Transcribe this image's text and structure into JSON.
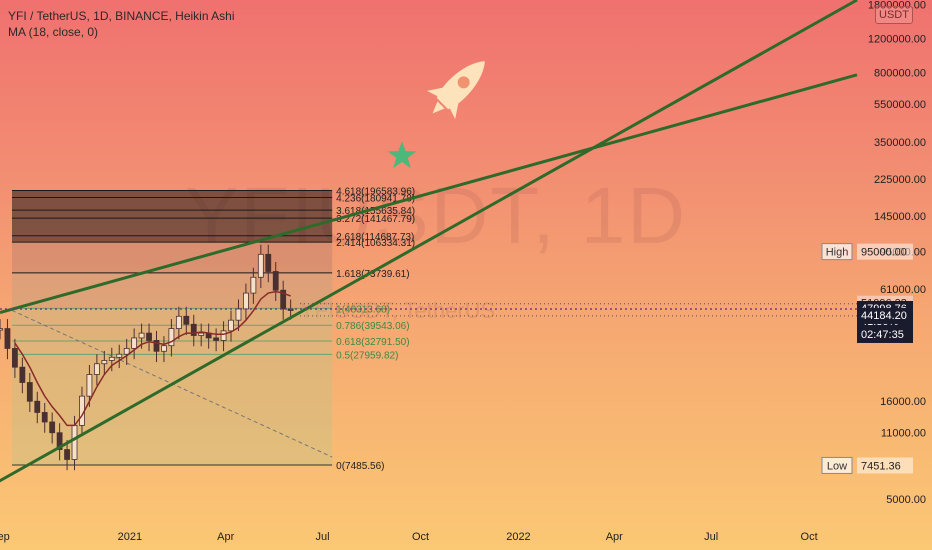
{
  "header": {
    "symbol_line": "YFI / TetherUS, 1D, BINANCE, Heikin Ashi",
    "indicator_line": "MA (18, close, 0)",
    "watermark": "YFIUSDT, 1D",
    "watermark_sub": "YFIUSDT, TetherUS",
    "currency": "USDT"
  },
  "icons": {
    "rocket": "rocket-icon",
    "star": "star-icon"
  },
  "colors": {
    "trendline": "#2e6b2a",
    "star": "#4cb87a",
    "rocket": "#fde3bc",
    "fib_dark": "#1f1a1a",
    "ma_line": "#8a2a2a",
    "candle": "#4a3030",
    "price_tag_bg": "#1b1b2e",
    "dotted_price": "#7a3a8a"
  },
  "chart_data": {
    "type": "candlestick",
    "y_scale": "log",
    "title": "YFI / TetherUS, 1D, BINANCE, Heikin Ashi",
    "x_ticks": [
      {
        "label": "Sep",
        "date": "2020-09-01"
      },
      {
        "label": "2021",
        "date": "2021-01-01"
      },
      {
        "label": "Apr",
        "date": "2021-04-01"
      },
      {
        "label": "Jul",
        "date": "2021-07-01"
      },
      {
        "label": "Oct",
        "date": "2021-10-01"
      },
      {
        "label": "2022",
        "date": "2022-01-01"
      },
      {
        "label": "Apr",
        "date": "2022-04-01"
      },
      {
        "label": "Jul",
        "date": "2022-07-01"
      },
      {
        "label": "Oct",
        "date": "2022-10-01"
      }
    ],
    "y_ticks": [
      {
        "label": "1800000.00",
        "value": 1800000
      },
      {
        "label": "1200000.00",
        "value": 1200000
      },
      {
        "label": "800000.00",
        "value": 800000
      },
      {
        "label": "550000.00",
        "value": 550000
      },
      {
        "label": "350000.00",
        "value": 350000
      },
      {
        "label": "225000.00",
        "value": 225000
      },
      {
        "label": "145000.00",
        "value": 145000
      },
      {
        "label": "95000.00",
        "value": 95000
      },
      {
        "label": "61000.00",
        "value": 61000
      },
      {
        "label": "16000.00",
        "value": 16000
      },
      {
        "label": "11000.00",
        "value": 11000
      },
      {
        "label": "5000.00",
        "value": 5000
      }
    ],
    "ylim": [
      3800,
      1900000
    ],
    "xlim": [
      "2020-09-01",
      "2022-11-15"
    ],
    "fib_levels": [
      {
        "label": "4.618(196583.96)",
        "value": 196583.96
      },
      {
        "label": "4.236(180941.78)",
        "value": 180941.78
      },
      {
        "label": "3.618(155635.84)",
        "value": 155635.84
      },
      {
        "label": "3.272(141467.79)",
        "value": 141467.79
      },
      {
        "label": "2.618(114687.73)",
        "value": 114687.73
      },
      {
        "label": "2.414(106334.31)",
        "value": 106334.31
      },
      {
        "label": "1.618(73739.61)",
        "value": 73739.61
      },
      {
        "label": "1(48313.68)",
        "value": 48313.68
      },
      {
        "label": "0.786(39543.06)",
        "value": 39543.06
      },
      {
        "label": "0.618(32791.50)",
        "value": 32791.5
      },
      {
        "label": "0.5(27959.82)",
        "value": 27959.82
      },
      {
        "label": "0(7485.56)",
        "value": 7485.56
      }
    ],
    "fib_range": {
      "start": "2020-09-01",
      "end": "2021-07-10"
    },
    "price_labels": {
      "high": {
        "label": "High",
        "value": 95000,
        "text": "95000.00"
      },
      "low": {
        "label": "Low",
        "value": 7451.36,
        "text": "7451.36"
      },
      "level_a": {
        "value": 51096.38,
        "text": "51096.38"
      },
      "level_b": {
        "value": 44184.2,
        "text": "44184.20"
      },
      "current": {
        "value": 47998.76,
        "text": "47998.76",
        "change": "41.30%",
        "countdown": "02:47:35"
      }
    },
    "trendlines": [
      {
        "name": "lower",
        "points": [
          [
            "2020-07-01",
            4000
          ],
          [
            "2022-11-15",
            1900000
          ]
        ]
      },
      {
        "name": "upper",
        "points": [
          [
            "2020-09-01",
            46000
          ],
          [
            "2022-11-15",
            780000
          ]
        ]
      }
    ],
    "series": {
      "dates_start": "2020-09-01",
      "interval_days": 7,
      "closes": [
        38000,
        30000,
        24000,
        20000,
        16000,
        14000,
        12500,
        11000,
        9000,
        8000,
        12000,
        17000,
        22000,
        25000,
        26000,
        27000,
        28000,
        30000,
        34000,
        36000,
        33000,
        29000,
        31000,
        38000,
        44000,
        40000,
        35000,
        36000,
        34000,
        33000,
        37000,
        42000,
        48000,
        58000,
        70000,
        92000,
        75000,
        60000,
        48000,
        47998.76
      ]
    },
    "ma": [
      null,
      null,
      32000,
      28000,
      24000,
      20000,
      17000,
      15000,
      13500,
      12000,
      12000,
      13500,
      16000,
      19000,
      22000,
      24500,
      26000,
      27500,
      29500,
      31500,
      32500,
      32000,
      31500,
      32500,
      34500,
      36000,
      36000,
      36500,
      36000,
      35500,
      35500,
      36500,
      38500,
      42000,
      47000,
      54000,
      58000,
      59000,
      58000,
      56000
    ]
  }
}
